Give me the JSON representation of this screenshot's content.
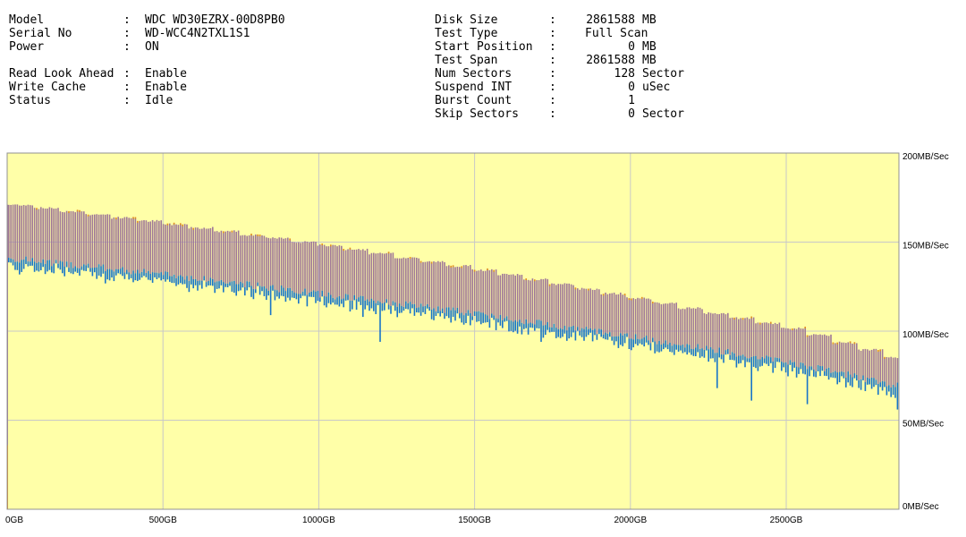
{
  "drive_info": {
    "left": [
      {
        "label": "Model",
        "value": "WDC WD30EZRX-00D8PB0"
      },
      {
        "label": "Serial No",
        "value": "WD-WCC4N2TXL1S1"
      },
      {
        "label": "Power",
        "value": "ON"
      },
      {
        "label": "Read Look Ahead",
        "value": "Enable"
      },
      {
        "label": "Write Cache",
        "value": "Enable"
      },
      {
        "label": "Status",
        "value": "Idle"
      }
    ],
    "right": [
      {
        "label": "Disk Size",
        "value": "2861588",
        "unit": "MB"
      },
      {
        "label": "Test Type",
        "value": "Full Scan",
        "unit": ""
      },
      {
        "label": "Start Position",
        "value": "0",
        "unit": "MB"
      },
      {
        "label": "Test Span",
        "value": "2861588",
        "unit": "MB"
      },
      {
        "label": "Num Sectors",
        "value": "128",
        "unit": "Sector"
      },
      {
        "label": "Suspend INT",
        "value": "0",
        "unit": "uSec"
      },
      {
        "label": "Burst Count",
        "value": "1",
        "unit": ""
      },
      {
        "label": "Skip Sectors",
        "value": "0",
        "unit": "Sector"
      }
    ],
    "colon": ":"
  },
  "chart_data": {
    "type": "bar",
    "x_axis": {
      "min": 0,
      "max": 2861.588,
      "unit": "GB",
      "ticks": [
        "0GB",
        "500GB",
        "1000GB",
        "1500GB",
        "2000GB",
        "2500GB"
      ],
      "tick_values": [
        0,
        500,
        1000,
        1500,
        2000,
        2500
      ]
    },
    "y_axis": {
      "min": 0,
      "max": 200,
      "ticks": [
        "0MB/Sec",
        "50MB/Sec",
        "100MB/Sec",
        "150MB/Sec",
        "200MB/Sec"
      ],
      "tick_values": [
        0,
        50,
        100,
        150,
        200
      ]
    },
    "grid": true,
    "colors": {
      "background": "#ffffa8",
      "grid": "#c8c8c8",
      "max_band": "#a07898",
      "min_band": "#1874c8",
      "peak": "#e09020",
      "frame": "#909090"
    },
    "series": {
      "max_trend": [
        {
          "gb": 0,
          "v": 171
        },
        {
          "gb": 500,
          "v": 160
        },
        {
          "gb": 1000,
          "v": 148
        },
        {
          "gb": 1500,
          "v": 134
        },
        {
          "gb": 2000,
          "v": 118
        },
        {
          "gb": 2500,
          "v": 101
        },
        {
          "gb": 2861,
          "v": 83
        }
      ],
      "avg_trend": [
        {
          "gb": 0,
          "v": 141
        },
        {
          "gb": 500,
          "v": 132
        },
        {
          "gb": 1000,
          "v": 121
        },
        {
          "gb": 1500,
          "v": 110
        },
        {
          "gb": 2000,
          "v": 97
        },
        {
          "gb": 2500,
          "v": 83
        },
        {
          "gb": 2861,
          "v": 69
        }
      ],
      "min_spikes": [
        {
          "gb": 845,
          "v": 109
        },
        {
          "gb": 1140,
          "v": 108
        },
        {
          "gb": 1195,
          "v": 94
        },
        {
          "gb": 1425,
          "v": 94
        },
        {
          "gb": 1710,
          "v": 94
        },
        {
          "gb": 1990,
          "v": 82
        },
        {
          "gb": 2275,
          "v": 68
        },
        {
          "gb": 2385,
          "v": 61
        },
        {
          "gb": 2565,
          "v": 59
        },
        {
          "gb": 2855,
          "v": 56
        }
      ]
    }
  }
}
